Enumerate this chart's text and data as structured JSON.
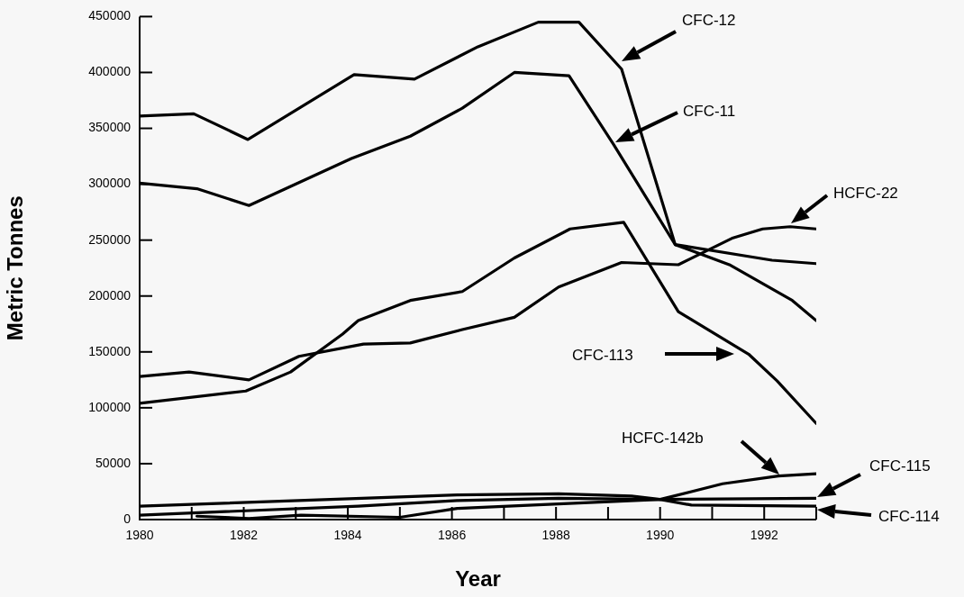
{
  "chart_data": {
    "type": "line",
    "xlabel": "Year",
    "ylabel": "Metric Tonnes",
    "xlim": [
      1980,
      1993
    ],
    "ylim": [
      0,
      450000
    ],
    "xticks": [
      1980,
      {
        "value": 1981,
        "label": null
      },
      1982,
      {
        "value": 1983,
        "label": null
      },
      1984,
      {
        "value": 1985,
        "label": null
      },
      1986,
      {
        "value": 1987,
        "label": null
      },
      1988,
      {
        "value": 1989,
        "label": null
      },
      1990,
      {
        "value": 1991,
        "label": null
      },
      1992,
      {
        "value": 1993,
        "label": null
      }
    ],
    "yticks": [
      0,
      50000,
      100000,
      150000,
      200000,
      250000,
      300000,
      350000,
      400000,
      450000
    ],
    "grid": false,
    "legend": false,
    "marker": "none",
    "line_style": "solid",
    "series": [
      {
        "color": "#000000",
        "x": [
          1980,
          1981.04,
          1982.08,
          1984.12,
          1985.28,
          1986.5,
          1987.66,
          1988.44,
          1989.26,
          1990.29,
          1992.15,
          1993
        ],
        "values": [
          361000,
          363000,
          340000,
          398000,
          394000,
          423000,
          445000,
          445000,
          403000,
          246000,
          232000,
          229000
        ]
      },
      {
        "color": "#000000",
        "x": [
          1980,
          1981.1,
          1982.1,
          1984.07,
          1985.2,
          1986.2,
          1987.2,
          1988.25,
          1989.1,
          1990.29,
          1991.33,
          1992.54,
          1993
        ],
        "values": [
          301000,
          296000,
          281000,
          323000,
          343000,
          368000,
          400000,
          397000,
          336000,
          246000,
          228000,
          196000,
          178000
        ]
      },
      {
        "color": "#000000",
        "x": [
          1980,
          1980.95,
          1982.1,
          1983.06,
          1984.3,
          1985.2,
          1986.2,
          1987.2,
          1988.05,
          1989.26,
          1990.35,
          1991.4,
          1991.97,
          1992.5,
          1993
        ],
        "values": [
          128000,
          132000,
          125000,
          146000,
          157000,
          158000,
          170000,
          181000,
          208000,
          230000,
          228000,
          252000,
          260000,
          262000,
          260000
        ]
      },
      {
        "color": "#000000",
        "x": [
          1980,
          1982.04,
          1982.9,
          1983.9,
          1984.2,
          1985.2,
          1986.2,
          1987.2,
          1988.27,
          1989.3,
          1990.35,
          1991.2,
          1991.7,
          1992.25,
          1993
        ],
        "values": [
          104000,
          115000,
          132000,
          166000,
          178000,
          196000,
          204000,
          234000,
          260000,
          266000,
          186000,
          162000,
          148000,
          124000,
          86000
        ]
      },
      {
        "color": "#000000",
        "x": [
          1980,
          1986.1,
          1988.05,
          1989.45,
          1990,
          1990.6,
          1993
        ],
        "values": [
          12000,
          22000,
          23000,
          21000,
          18000,
          13000,
          12000
        ]
      },
      {
        "color": "#000000",
        "x": [
          1980,
          1984.2,
          1986.1,
          1988.05,
          1990,
          1991.2,
          1992.27,
          1993
        ],
        "values": [
          4000,
          12000,
          17000,
          19000,
          18000,
          32000,
          39000,
          41000
        ]
      },
      {
        "color": "#000000",
        "x": [
          1981.1,
          1982.1,
          1983.1,
          1985,
          1986.1,
          1988.05,
          1990,
          1993
        ],
        "values": [
          3000,
          1000,
          4000,
          2000,
          10000,
          14000,
          18000,
          19000
        ]
      }
    ],
    "annotations": [
      "CFC-12",
      "CFC-11",
      "HCFC-22",
      "CFC-113",
      "HCFC-142b",
      "CFC-115",
      "CFC-114"
    ]
  }
}
